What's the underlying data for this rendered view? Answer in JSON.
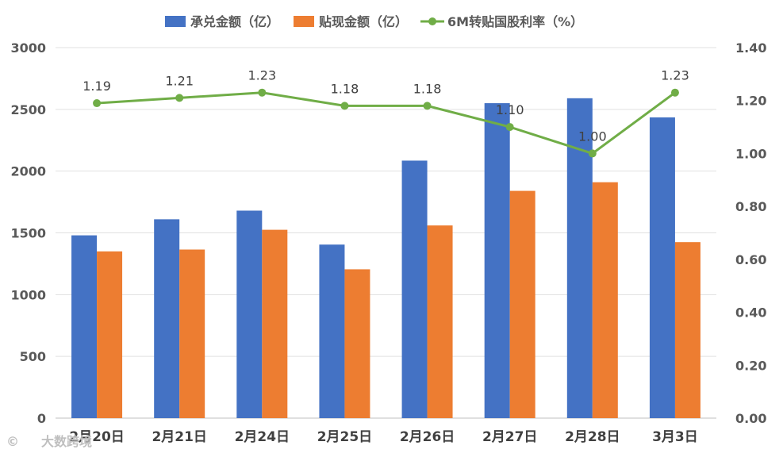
{
  "chart_data": {
    "type": "bar",
    "categories": [
      "2月20日",
      "2月21日",
      "2月24日",
      "2月25日",
      "2月26日",
      "2月27日",
      "2月28日",
      "3月3日"
    ],
    "series": [
      {
        "name": "承兑金额（亿）",
        "kind": "bar",
        "axis": "left",
        "color": "#4472C4",
        "values": [
          1480,
          1610,
          1680,
          1405,
          2085,
          2550,
          2590,
          2435
        ]
      },
      {
        "name": "贴现金额（亿）",
        "kind": "bar",
        "axis": "left",
        "color": "#ED7D31",
        "values": [
          1350,
          1365,
          1525,
          1205,
          1560,
          1840,
          1910,
          1425
        ]
      },
      {
        "name": "6M转贴国股利率（%）",
        "kind": "line",
        "axis": "right",
        "color": "#70AD47",
        "values": [
          1.19,
          1.21,
          1.23,
          1.18,
          1.18,
          1.1,
          1.0,
          1.23
        ],
        "labels": [
          "1.19",
          "1.21",
          "1.23",
          "1.18",
          "1.18",
          "1.10",
          "1.00",
          "1.23"
        ]
      }
    ],
    "y_left": {
      "ylim": [
        0,
        3000
      ],
      "ticks": [
        "0",
        "500",
        "1000",
        "1500",
        "2000",
        "2500",
        "3000"
      ]
    },
    "y_right": {
      "ylim": [
        0,
        1.4
      ],
      "ticks": [
        "0.00",
        "0.20",
        "0.40",
        "0.60",
        "0.80",
        "1.00",
        "1.20",
        "1.40"
      ]
    },
    "grid": true,
    "legend_position": "top-center",
    "watermark": "大数跨境"
  }
}
